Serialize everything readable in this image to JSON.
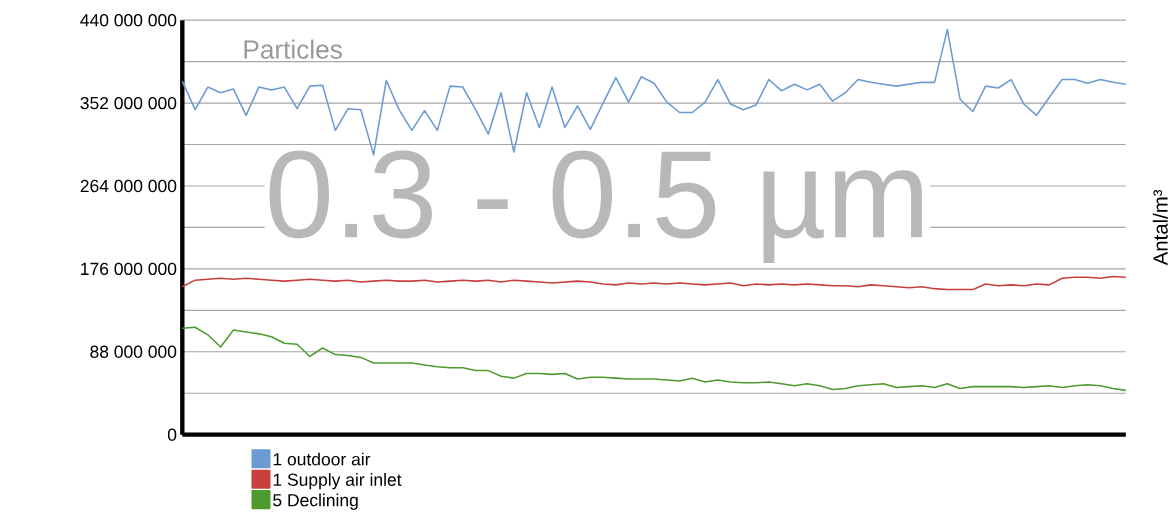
{
  "chart_data": {
    "type": "line",
    "title": "Particles",
    "subtitle": "0.3 - 0.5 µm",
    "ylabel": "Antal/m³",
    "categories": [
      null,
      null,
      null,
      null,
      null,
      null,
      null,
      null,
      null,
      null,
      null,
      null,
      null,
      null,
      null,
      null,
      null,
      null,
      null,
      null,
      null,
      null,
      null,
      null,
      null,
      null,
      null,
      null,
      null,
      null,
      null,
      null,
      null,
      null,
      null,
      null,
      null,
      null,
      null,
      null,
      null,
      null,
      null,
      null,
      null,
      null,
      null,
      null,
      null,
      null,
      null,
      null,
      null,
      null,
      null,
      null,
      null,
      null,
      null,
      null,
      null,
      null,
      null,
      null,
      null,
      null,
      null,
      null,
      null,
      null,
      null,
      null,
      null,
      null,
      null
    ],
    "series": [
      {
        "name": "1 outdoor air",
        "color": "#6b9bd2",
        "values": [
          375000000,
          345000000,
          369000000,
          363000000,
          367000000,
          339000000,
          369000000,
          366000000,
          369000000,
          346000000,
          370000000,
          371000000,
          323000000,
          346000000,
          345000000,
          297000000,
          376000000,
          345000000,
          323000000,
          344000000,
          323000000,
          370000000,
          369000000,
          345000000,
          319000000,
          363000000,
          300000000,
          363000000,
          326000000,
          369000000,
          326000000,
          349000000,
          324000000,
          352000000,
          379000000,
          353000000,
          380000000,
          373000000,
          353000000,
          342000000,
          342000000,
          353000000,
          377000000,
          351000000,
          345000000,
          350000000,
          377000000,
          365000000,
          372000000,
          366000000,
          372000000,
          354000000,
          363000000,
          377000000,
          374000000,
          372000000,
          370000000,
          372000000,
          374000000,
          374000000,
          430000000,
          356000000,
          343000000,
          370000000,
          368000000,
          377000000,
          351000000,
          339000000,
          358000000,
          377000000,
          377000000,
          373000000,
          377000000,
          374000000,
          372000000
        ]
      },
      {
        "name": "1 Supply air inlet",
        "color": "#c8403c",
        "values": [
          157000000,
          164000000,
          165000000,
          166000000,
          165000000,
          166000000,
          165000000,
          164000000,
          163000000,
          164000000,
          165000000,
          164000000,
          163000000,
          164000000,
          162000000,
          163000000,
          164000000,
          163000000,
          163000000,
          164000000,
          162000000,
          163000000,
          164000000,
          163000000,
          164000000,
          162000000,
          164000000,
          163000000,
          162000000,
          161000000,
          162000000,
          163000000,
          162000000,
          160000000,
          159000000,
          161000000,
          160000000,
          161000000,
          160000000,
          161000000,
          160000000,
          159000000,
          160000000,
          161000000,
          158000000,
          160000000,
          159000000,
          160000000,
          159000000,
          160000000,
          159000000,
          158000000,
          158000000,
          157000000,
          159000000,
          158000000,
          157000000,
          156000000,
          157000000,
          155000000,
          154000000,
          154000000,
          154000000,
          160000000,
          158000000,
          159000000,
          158000000,
          160000000,
          159000000,
          166000000,
          167000000,
          167000000,
          166000000,
          168000000,
          167000000
        ]
      },
      {
        "name": "5 Declining",
        "color": "#4e9a2e",
        "values": [
          113000000,
          114000000,
          106000000,
          93000000,
          111000000,
          109000000,
          107000000,
          104000000,
          97000000,
          96000000,
          83000000,
          92000000,
          85000000,
          84000000,
          82000000,
          76000000,
          76000000,
          76000000,
          76000000,
          74000000,
          72000000,
          71000000,
          71000000,
          68000000,
          68000000,
          62000000,
          60000000,
          65000000,
          65000000,
          64000000,
          65000000,
          59000000,
          61000000,
          61000000,
          60000000,
          59000000,
          59000000,
          59000000,
          58000000,
          57000000,
          60000000,
          56000000,
          58000000,
          56000000,
          55000000,
          55000000,
          56000000,
          54000000,
          52000000,
          54000000,
          52000000,
          48000000,
          49000000,
          52000000,
          53000000,
          54000000,
          50000000,
          51000000,
          52000000,
          50000000,
          54000000,
          49000000,
          51000000,
          51000000,
          51000000,
          51000000,
          50000000,
          51000000,
          52000000,
          50000000,
          52000000,
          53000000,
          52000000,
          49000000,
          47000000
        ]
      }
    ],
    "ylim": [
      0,
      440000000
    ],
    "yticks": [
      {
        "value": 0,
        "label": "0"
      },
      {
        "value": 44000000,
        "label": null
      },
      {
        "value": 88000000,
        "label": "88 000 000"
      },
      {
        "value": 132000000,
        "label": null
      },
      {
        "value": 176000000,
        "label": "176 000 000"
      },
      {
        "value": 220000000,
        "label": null
      },
      {
        "value": 264000000,
        "label": "264 000 000"
      },
      {
        "value": 308000000,
        "label": null
      },
      {
        "value": 352000000,
        "label": "352 000 000"
      },
      {
        "value": 396000000,
        "label": null
      },
      {
        "value": 440000000,
        "label": "440 000 000"
      }
    ],
    "grid": true,
    "legend": "bottom left"
  }
}
